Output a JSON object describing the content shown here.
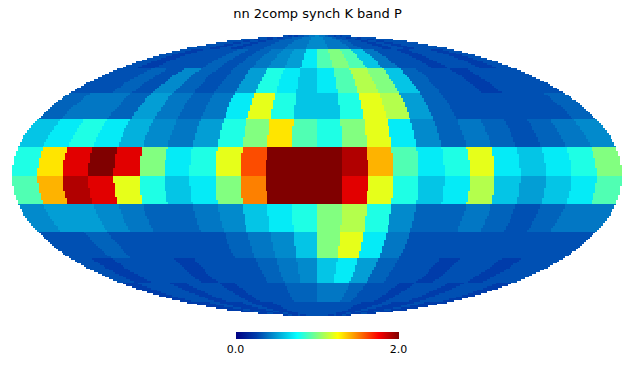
{
  "chart_data": {
    "type": "heatmap",
    "title": "nn 2comp synch K band P",
    "color": "jet",
    "tick_labels": false,
    "cells": [
      [
        0.3,
        0.3,
        0.25,
        0.3,
        0.25,
        0.3,
        0.3,
        0.35,
        0.35,
        0.4,
        0.4,
        0.45,
        0.45,
        0.4,
        0.4,
        0.35,
        0.3,
        0.3,
        0.25,
        0.3,
        0.25,
        0.3,
        0.3,
        0.3
      ],
      [
        0.3,
        0.25,
        0.3,
        0.3,
        0.3,
        0.35,
        0.3,
        0.35,
        0.4,
        0.45,
        0.5,
        0.7,
        0.9,
        1.0,
        0.9,
        0.6,
        0.4,
        0.3,
        0.3,
        0.25,
        0.3,
        0.3,
        0.25,
        0.3
      ],
      [
        0.3,
        0.3,
        0.35,
        0.3,
        0.45,
        0.35,
        0.3,
        0.35,
        0.5,
        0.8,
        0.7,
        0.6,
        0.7,
        0.9,
        1.1,
        1.0,
        0.6,
        0.35,
        0.3,
        0.3,
        0.25,
        0.3,
        0.3,
        0.3
      ],
      [
        0.35,
        0.4,
        0.4,
        0.35,
        0.5,
        0.4,
        0.35,
        0.4,
        0.7,
        1.2,
        0.8,
        0.6,
        0.6,
        0.8,
        1.2,
        1.1,
        0.5,
        0.35,
        0.3,
        0.3,
        0.3,
        0.3,
        0.3,
        0.35
      ],
      [
        0.6,
        0.7,
        0.8,
        0.7,
        0.55,
        0.45,
        0.4,
        0.5,
        0.8,
        1.0,
        1.3,
        0.9,
        0.8,
        1.0,
        1.2,
        0.7,
        0.45,
        0.35,
        0.4,
        0.35,
        0.3,
        0.35,
        0.4,
        0.45
      ],
      [
        0.8,
        1.3,
        1.8,
        2.0,
        1.8,
        1.0,
        0.7,
        0.8,
        1.2,
        1.6,
        2.0,
        2.0,
        2.0,
        1.9,
        1.4,
        0.9,
        0.7,
        0.8,
        1.2,
        0.7,
        0.6,
        0.7,
        0.8,
        1.0
      ],
      [
        0.9,
        1.4,
        1.9,
        1.8,
        1.2,
        0.8,
        0.6,
        0.7,
        1.0,
        1.5,
        2.0,
        2.0,
        2.0,
        1.8,
        1.2,
        0.8,
        0.6,
        0.7,
        1.1,
        0.6,
        0.5,
        0.6,
        0.7,
        0.9
      ],
      [
        0.45,
        0.5,
        0.5,
        0.45,
        0.4,
        0.35,
        0.35,
        0.4,
        0.45,
        0.6,
        0.7,
        0.8,
        1.0,
        1.1,
        0.8,
        0.45,
        0.35,
        0.35,
        0.4,
        0.35,
        0.3,
        0.35,
        0.4,
        0.4
      ],
      [
        0.3,
        0.3,
        0.35,
        0.3,
        0.3,
        0.3,
        0.3,
        0.3,
        0.35,
        0.4,
        0.45,
        0.6,
        1.0,
        1.2,
        0.7,
        0.4,
        0.3,
        0.3,
        0.3,
        0.3,
        0.3,
        0.3,
        0.3,
        0.3
      ],
      [
        0.3,
        0.25,
        0.3,
        0.3,
        0.3,
        0.25,
        0.3,
        0.3,
        0.3,
        0.35,
        0.4,
        0.45,
        0.6,
        0.7,
        0.5,
        0.35,
        0.3,
        0.3,
        0.25,
        0.3,
        0.3,
        0.25,
        0.3,
        0.3
      ],
      [
        0.25,
        0.3,
        0.3,
        0.25,
        0.3,
        0.3,
        0.25,
        0.3,
        0.3,
        0.3,
        0.35,
        0.35,
        0.4,
        0.4,
        0.35,
        0.3,
        0.3,
        0.25,
        0.3,
        0.3,
        0.25,
        0.3,
        0.3,
        0.25
      ],
      [
        0.25,
        0.25,
        0.3,
        0.25,
        0.25,
        0.3,
        0.25,
        0.25,
        0.3,
        0.3,
        0.3,
        0.3,
        0.3,
        0.3,
        0.3,
        0.3,
        0.25,
        0.25,
        0.3,
        0.25,
        0.25,
        0.3,
        0.25,
        0.25
      ]
    ],
    "colorbar": {
      "range": [
        0,
        2
      ],
      "ticks": [
        {
          "value": 0,
          "label": "0.0"
        },
        {
          "value": 2,
          "label": "2.0"
        }
      ]
    }
  }
}
